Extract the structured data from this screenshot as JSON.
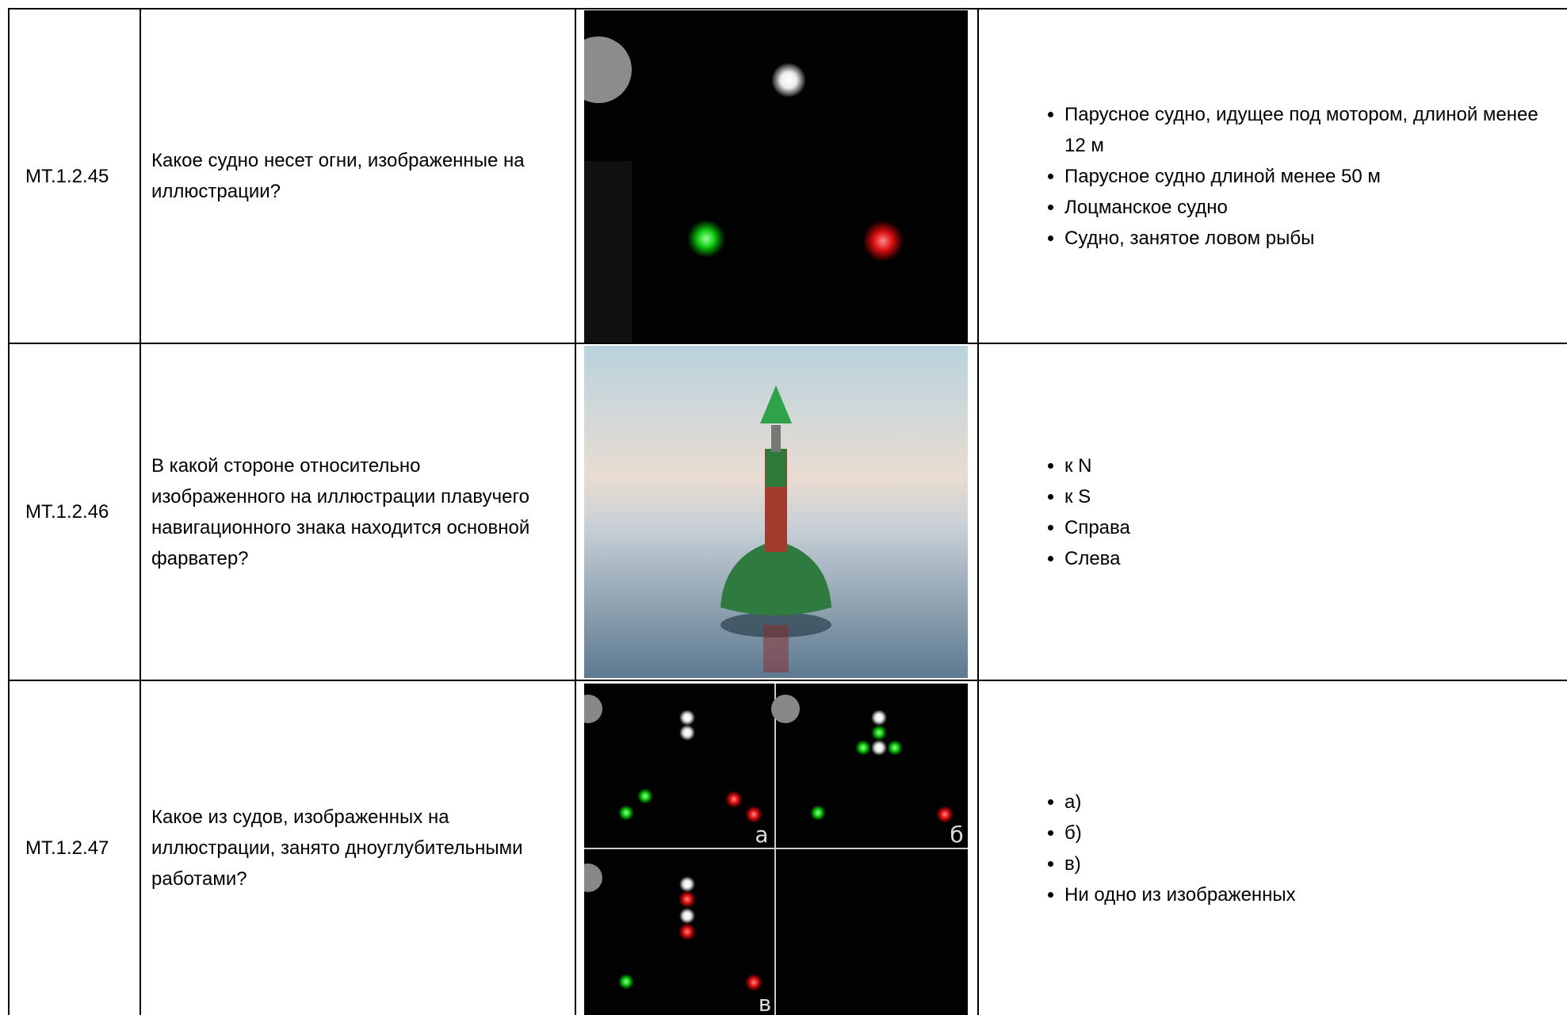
{
  "table": {
    "rows": [
      {
        "id": "МТ.1.2.45",
        "question": "Какое судно несет огни, изображенные на иллюстрации?",
        "answers": [
          "Парусное судно, идущее под мотором, длиной менее 12 м",
          "Парусное судно длиной менее 50 м",
          "Лоцманское судно",
          "Судно, занятое ловом рыбы"
        ]
      },
      {
        "id": "МТ.1.2.46",
        "question": "В какой стороне относительно изображенного на иллюстрации плавучего навигационного знака находится основной фарватер?",
        "answers": [
          "к N",
          "к S",
          "Справа",
          "Слева"
        ]
      },
      {
        "id": "МТ.1.2.47",
        "question": "Какое из судов, изображенных на иллюстрации, занято дноуглубительными работами?",
        "answers": [
          "а)",
          "б)",
          "в)",
          "Ни одно из изображенных"
        ],
        "image_labels": [
          "а",
          "б",
          "в"
        ]
      }
    ]
  }
}
